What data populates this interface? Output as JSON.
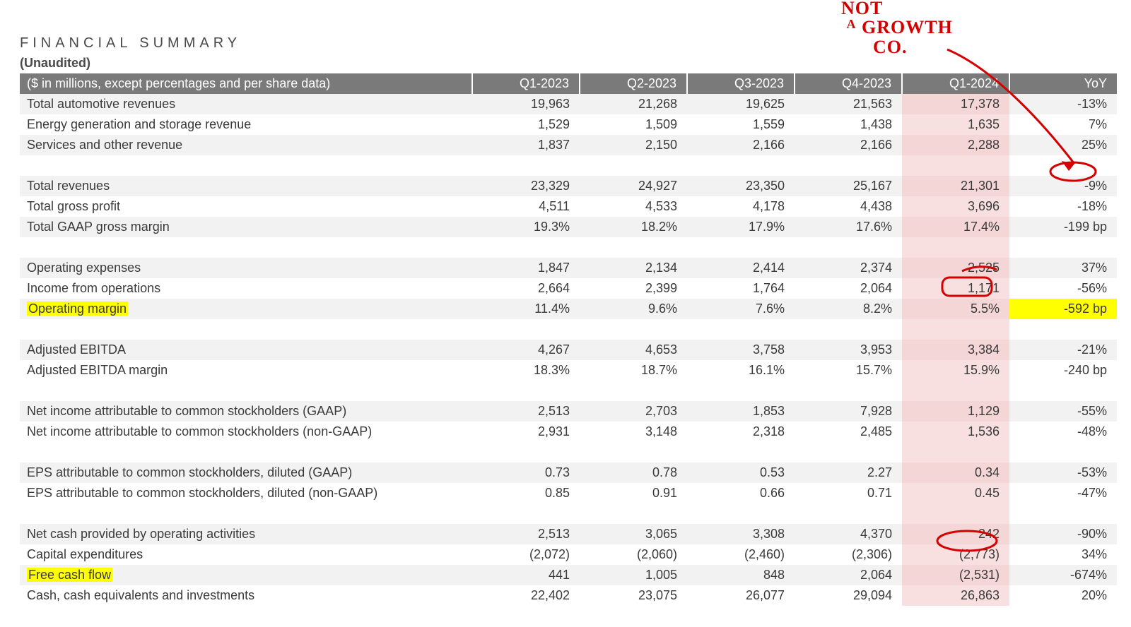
{
  "title": "FINANCIAL SUMMARY",
  "subtitle": "(Unaudited)",
  "columns": [
    "($ in millions, except percentages and per share data)",
    "Q1-2023",
    "Q2-2023",
    "Q3-2023",
    "Q4-2023",
    "Q1-2024",
    "YoY"
  ],
  "highlighted_q1_2024_column": true,
  "q1_2024_highlight_color": "#f8e0e0",
  "yellow_highlight_color": "#ffff00",
  "header_bg": "#7a7a7a",
  "stripe_bg": "#f2f2f2",
  "annotation_color": "#d40000",
  "rows": [
    {
      "type": "data",
      "stripe": true,
      "label": "Total automotive revenues",
      "vals": [
        "19,963",
        "21,268",
        "19,625",
        "21,563",
        "17,378",
        "-13%"
      ]
    },
    {
      "type": "data",
      "stripe": false,
      "label": "Energy generation and storage revenue",
      "vals": [
        "1,529",
        "1,509",
        "1,559",
        "1,438",
        "1,635",
        "7%"
      ]
    },
    {
      "type": "data",
      "stripe": true,
      "label": "Services and other revenue",
      "vals": [
        "1,837",
        "2,150",
        "2,166",
        "2,166",
        "2,288",
        "25%"
      ]
    },
    {
      "type": "spacer"
    },
    {
      "type": "data",
      "stripe": true,
      "label": "Total revenues",
      "vals": [
        "23,329",
        "24,927",
        "23,350",
        "25,167",
        "21,301",
        "-9%"
      ]
    },
    {
      "type": "data",
      "stripe": false,
      "label": "Total gross profit",
      "vals": [
        "4,511",
        "4,533",
        "4,178",
        "4,438",
        "3,696",
        "-18%"
      ]
    },
    {
      "type": "data",
      "stripe": true,
      "label": "Total GAAP gross margin",
      "vals": [
        "19.3%",
        "18.2%",
        "17.9%",
        "17.6%",
        "17.4%",
        "-199 bp"
      ]
    },
    {
      "type": "spacer"
    },
    {
      "type": "data",
      "stripe": true,
      "label": "Operating expenses",
      "vals": [
        "1,847",
        "2,134",
        "2,414",
        "2,374",
        "2,525",
        "37%"
      ]
    },
    {
      "type": "data",
      "stripe": false,
      "label": "Income from operations",
      "vals": [
        "2,664",
        "2,399",
        "1,764",
        "2,064",
        "1,171",
        "-56%"
      ]
    },
    {
      "type": "data",
      "stripe": true,
      "label": "Operating margin",
      "label_hl": true,
      "row_hl_from_q1_2024": true,
      "vals": [
        "11.4%",
        "9.6%",
        "7.6%",
        "8.2%",
        "5.5%",
        "-592 bp"
      ]
    },
    {
      "type": "spacer"
    },
    {
      "type": "data",
      "stripe": true,
      "label": "Adjusted EBITDA",
      "vals": [
        "4,267",
        "4,653",
        "3,758",
        "3,953",
        "3,384",
        "-21%"
      ]
    },
    {
      "type": "data",
      "stripe": false,
      "label": "Adjusted EBITDA margin",
      "vals": [
        "18.3%",
        "18.7%",
        "16.1%",
        "15.7%",
        "15.9%",
        "-240 bp"
      ]
    },
    {
      "type": "spacer"
    },
    {
      "type": "data",
      "stripe": true,
      "label": "Net income attributable to common stockholders (GAAP)",
      "vals": [
        "2,513",
        "2,703",
        "1,853",
        "7,928",
        "1,129",
        "-55%"
      ]
    },
    {
      "type": "data",
      "stripe": false,
      "label": "Net income attributable to common stockholders (non-GAAP)",
      "vals": [
        "2,931",
        "3,148",
        "2,318",
        "2,485",
        "1,536",
        "-48%"
      ]
    },
    {
      "type": "spacer"
    },
    {
      "type": "data",
      "stripe": true,
      "label": "EPS attributable to common stockholders, diluted (GAAP)",
      "vals": [
        "0.73",
        "0.78",
        "0.53",
        "2.27",
        "0.34",
        "-53%"
      ]
    },
    {
      "type": "data",
      "stripe": false,
      "label": "EPS attributable to common stockholders, diluted (non-GAAP)",
      "vals": [
        "0.85",
        "0.91",
        "0.66",
        "0.71",
        "0.45",
        "-47%"
      ]
    },
    {
      "type": "spacer"
    },
    {
      "type": "data",
      "stripe": true,
      "label": "Net cash provided by operating activities",
      "vals": [
        "2,513",
        "3,065",
        "3,308",
        "4,370",
        "242",
        "-90%"
      ]
    },
    {
      "type": "data",
      "stripe": false,
      "label": "Capital expenditures",
      "vals": [
        "(2,072)",
        "(2,060)",
        "(2,460)",
        "(2,306)",
        "(2,773)",
        "34%"
      ]
    },
    {
      "type": "data",
      "stripe": true,
      "label": "Free cash flow",
      "label_hl": true,
      "vals": [
        "441",
        "1,005",
        "848",
        "2,064",
        "(2,531)",
        "-674%"
      ]
    },
    {
      "type": "data",
      "stripe": false,
      "label": "Cash, cash equivalents and investments",
      "vals": [
        "22,402",
        "23,075",
        "26,077",
        "29,094",
        "26,863",
        "20%"
      ]
    }
  ],
  "annotations": {
    "headline_text_line1": "NOT",
    "headline_text_line2": "A GROWTH",
    "headline_text_line3": "CO.",
    "circles": [
      "yoy_-9%",
      "operating_margin_5.5%",
      "free_cash_flow_(2,531)"
    ],
    "arrow": "from headline to -9% YoY cell"
  }
}
